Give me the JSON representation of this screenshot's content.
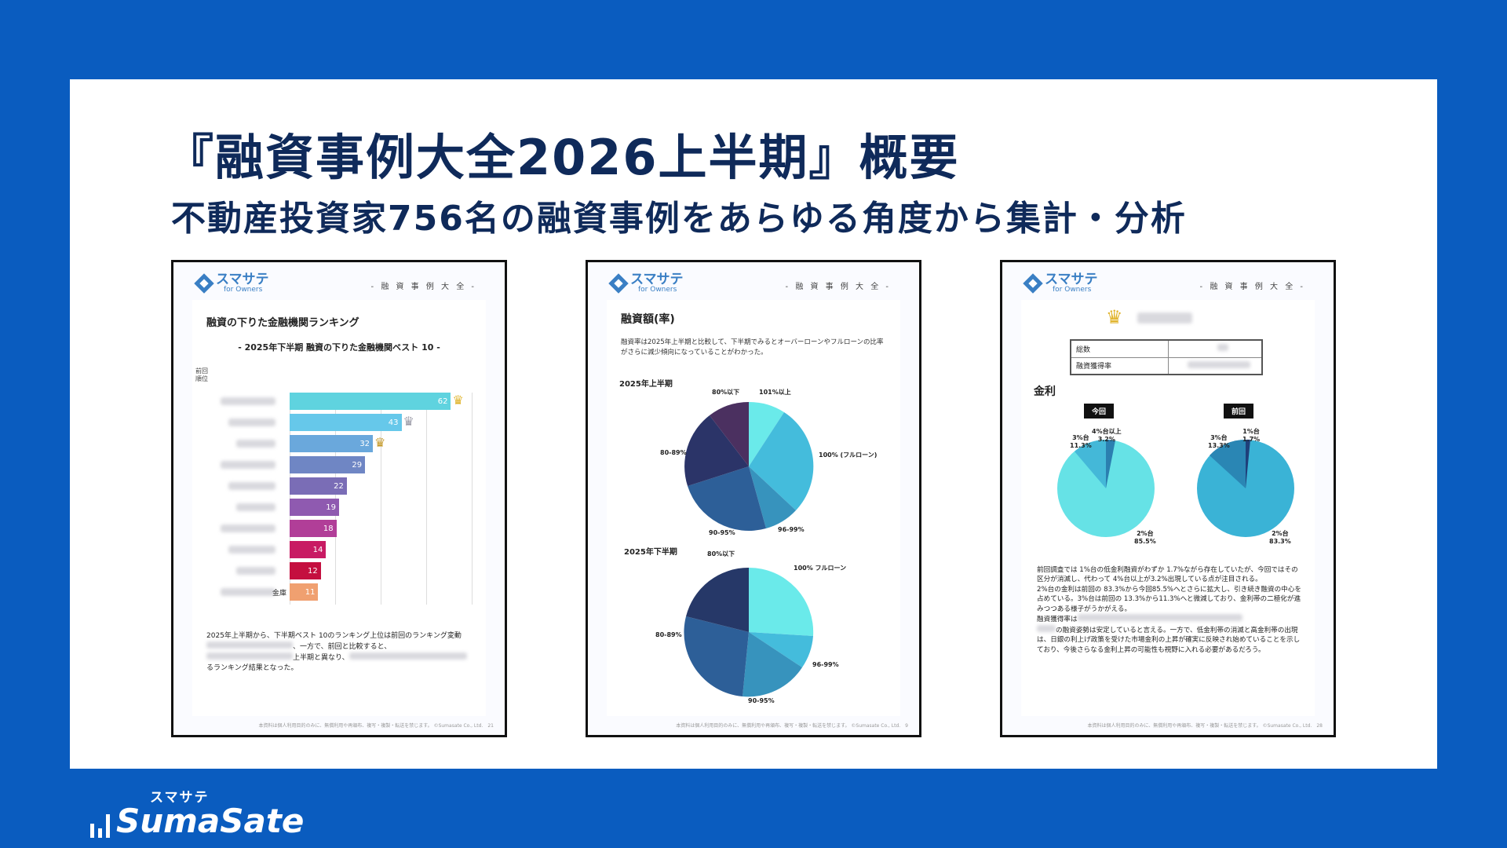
{
  "title": "『融資事例大全2026上半期』概要",
  "subtitle": "不動産投資家756名の融資事例をあらゆる角度から集計・分析",
  "doc_common": {
    "logo_main": "スマサテ",
    "logo_sub": "for Owners",
    "tag": "- 融 資 事 例 大 全 -"
  },
  "doc1": {
    "heading": "融資の下りた金融機関ランキング",
    "subheading": "- 2025年下半期 融資の下りた金融機関ベスト 10 -",
    "prev_rank_label": "前回\n順位",
    "visible_label_fragment": "金庫",
    "bars": [
      62,
      43,
      32,
      29,
      22,
      19,
      18,
      14,
      12,
      11
    ],
    "bar_colors": [
      "#5fd3df",
      "#66c8ea",
      "#6aa8dc",
      "#6f86c4",
      "#7a6db6",
      "#8f5ab0",
      "#b13e98",
      "#c81b63",
      "#c40f3f",
      "#f0a070"
    ],
    "text_line1": "2025年上半期から、下半期ベスト 10のランキング上位は前回のランキング変動",
    "text_frag1": "、一方で、前回と比較すると、",
    "text_frag2": "上半期と異なり、",
    "text_line3": "るランキング結果となった。",
    "footer": "本資料は個人利用目的のみに、無償利用や再頒布、複写・複製・転送を禁じます。 ©Sumasate Co., Ltd.",
    "page": "21"
  },
  "doc2": {
    "heading": "融資額(率)",
    "para": "融資率は2025年上半期と比較して、下半期でみるとオーバーローンやフルローンの比率がさらに減少傾向になっていることがわかった。",
    "h1_label": "2025年上半期",
    "h2_label": "2025年下半期",
    "pie1": {
      "labels": [
        "80%以下",
        "101%以上",
        "100% (フルローン)",
        "96-99%",
        "90-95%",
        "80-89%"
      ],
      "colors": [
        "#6aeaea",
        "#44bcdc",
        "#3793bd",
        "#2d5f98",
        "#2b3468",
        "#4b3060"
      ]
    },
    "pie2": {
      "labels": [
        "80%以下",
        "100% フルローン",
        "96-99%",
        "90-95%",
        "80-89%"
      ],
      "colors": [
        "#6aeaea",
        "#44bcdc",
        "#3793bd",
        "#2d5f98",
        "#263868"
      ]
    },
    "footer": "本資料は個人利用目的のみに、無償利用や再頒布、複写・複製・転送を禁じます。 ©Sumasate Co., Ltd.",
    "page": "9"
  },
  "doc3": {
    "table_row1": "総数",
    "table_row2": "融資獲得率",
    "heading": "金利",
    "tag_now": "今回",
    "tag_prev": "前回",
    "pie_now": {
      "labels": [
        "3%台\n11.3%",
        "4%台以上\n3.2%",
        "2%台\n85.5%"
      ],
      "values": [
        11.3,
        3.2,
        85.5
      ]
    },
    "pie_prev": {
      "labels": [
        "3%台\n13.3%",
        "1%台\n1.7%",
        "2%台\n83.3%"
      ],
      "values": [
        13.3,
        1.7,
        83.3
      ]
    },
    "text1": "前回調査では 1%台の低金利融資がわずか 1.7%ながら存在していたが、今回ではその区分が消滅し、代わって 4%台以上が3.2%出現している点が注目される。",
    "text2": "2%台の金利は前回の 83.3%から今回85.5%へとさらに拡大し、引き続き融資の中心を占めている。3%台は前回の 13.3%から11.3%へと微減しており、金利帯の二極化が進みつつある様子がうかがえる。",
    "text3": "融資獲得率は",
    "text4": "の融資姿勢は安定していると言える。一方で、低金利帯の消滅と高金利帯の出現は、日銀の利上げ政策を受けた市場金利の上昇が確実に反映され始めていることを示しており、今後さらなる金利上昇の可能性も視野に入れる必要があるだろう。",
    "footer": "本資料は個人利用目的のみに、無償利用や再頒布、複写・複製・転送を禁じます。 ©Sumasate Co., Ltd.",
    "page": "28"
  },
  "brand": {
    "kana": "スマサテ",
    "name": "SumaSate"
  }
}
